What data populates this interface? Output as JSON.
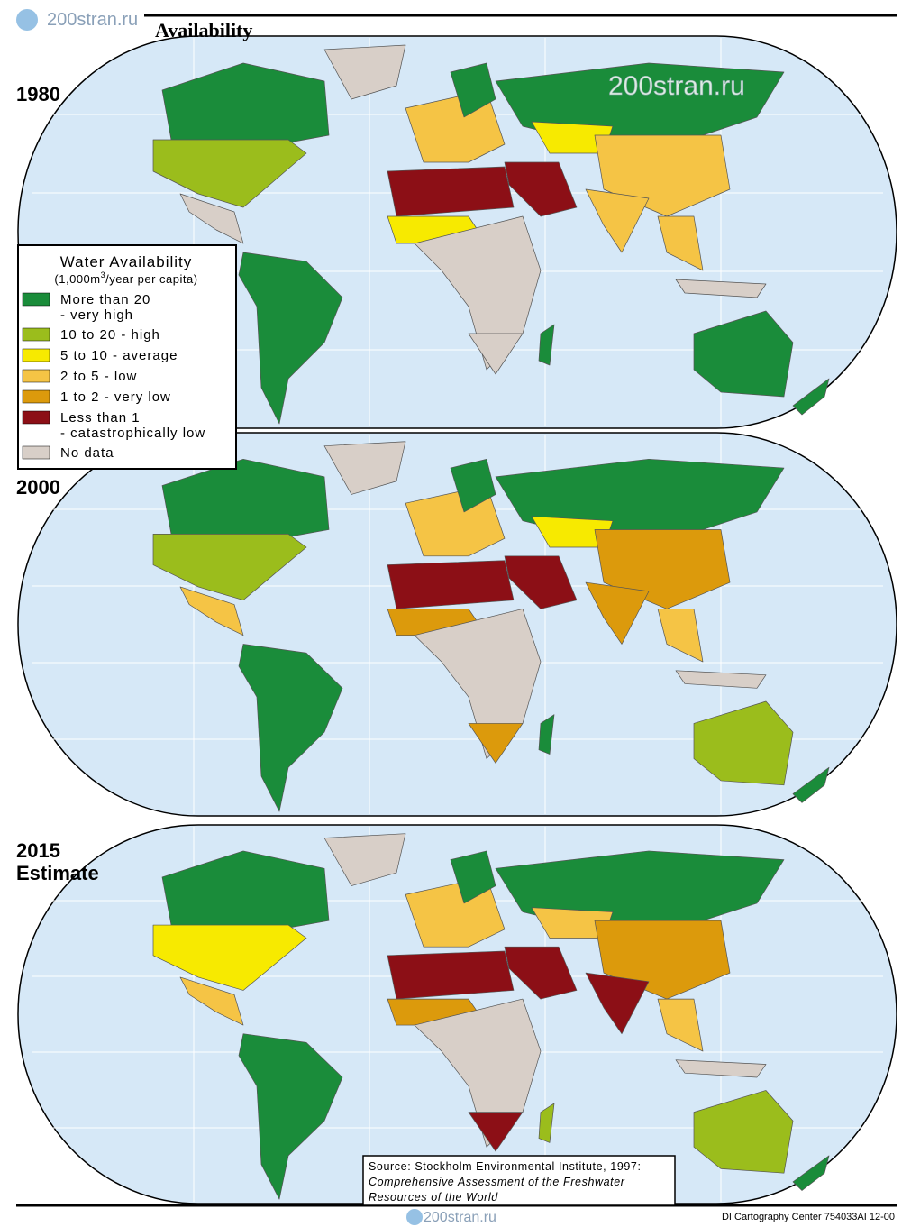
{
  "header": {
    "title": "Availability",
    "watermarks": [
      "200stran.ru",
      "200stran.ru",
      "200stran.ru"
    ]
  },
  "maps": [
    {
      "label": [
        "1980"
      ]
    },
    {
      "label": [
        "2000"
      ]
    },
    {
      "label": [
        "2015",
        "Estimate"
      ]
    }
  ],
  "legend": {
    "title": "Water Availability",
    "subtitle": {
      "before": "(1,000m",
      "sup": "3",
      "after": "/year per capita)"
    },
    "items": [
      {
        "color": "#1a8c3a",
        "lines": [
          "More than 20",
          "- very high"
        ]
      },
      {
        "color": "#9bbd1c",
        "lines": [
          "10 to 20 - high"
        ]
      },
      {
        "color": "#f7ea00",
        "lines": [
          "5 to 10 - average"
        ]
      },
      {
        "color": "#f5c445",
        "lines": [
          "2 to 5 - low"
        ]
      },
      {
        "color": "#dc9a0c",
        "lines": [
          "1 to 2 - very low"
        ]
      },
      {
        "color": "#8c0f16",
        "lines": [
          "Less than 1",
          "- catastrophically low"
        ]
      },
      {
        "color": "#d8cfc8",
        "lines": [
          "No data"
        ]
      }
    ]
  },
  "source": {
    "lead": "Source:  Stockholm Environmental Institute, 1997:",
    "title_lines": [
      "Comprehensive Assessment of the Freshwater",
      "Resources of the World"
    ]
  },
  "credit": "DI Cartography Center 754033AI 12-00"
}
